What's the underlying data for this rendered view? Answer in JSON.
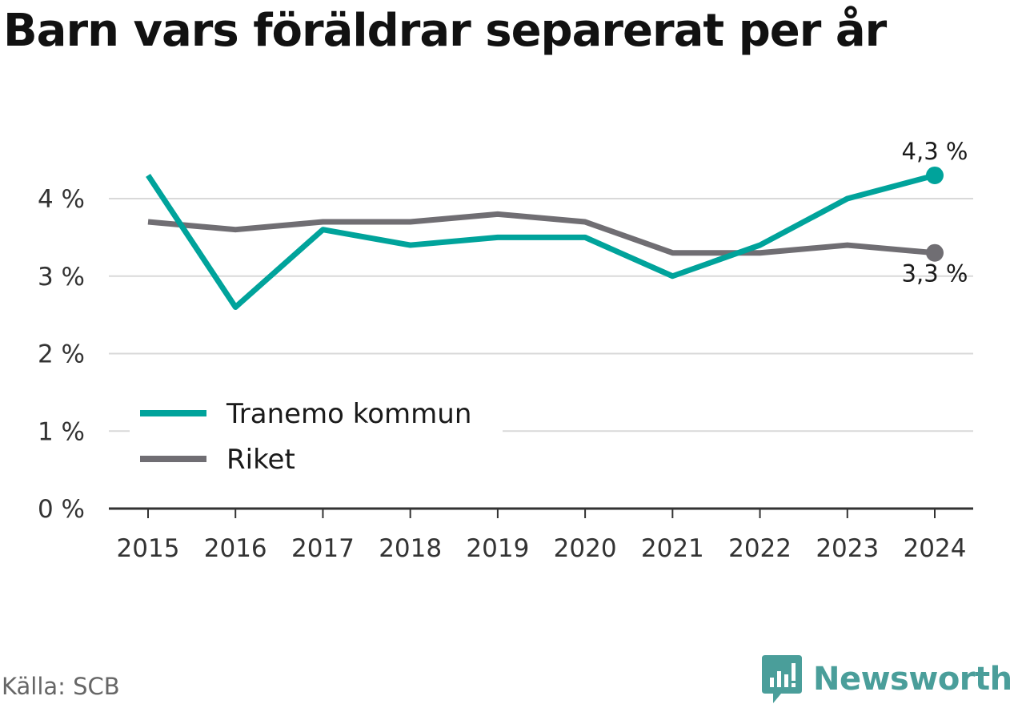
{
  "title": "Barn vars föräldrar separerat per år",
  "source": "Källa: SCB",
  "brand": {
    "name": "Newsworthy",
    "icon": "newsworthy-logo-icon"
  },
  "colors": {
    "tranemo": "#00a39b",
    "riket": "#706e73",
    "grid": "#d9d9d9",
    "axis": "#333333",
    "brand": "#4a9e9a"
  },
  "chart_data": {
    "type": "line",
    "categories": [
      "2015",
      "2016",
      "2017",
      "2018",
      "2019",
      "2020",
      "2021",
      "2022",
      "2023",
      "2024"
    ],
    "series": [
      {
        "name": "Tranemo kommun",
        "values": [
          4.3,
          2.6,
          3.6,
          3.4,
          3.5,
          3.5,
          3.0,
          3.4,
          4.0,
          4.3
        ],
        "end_label": "4,3 %"
      },
      {
        "name": "Riket",
        "values": [
          3.7,
          3.6,
          3.7,
          3.7,
          3.8,
          3.7,
          3.3,
          3.3,
          3.4,
          3.3
        ],
        "end_label": "3,3 %"
      }
    ],
    "yticks": [
      "0 %",
      "1 %",
      "2 %",
      "3 %",
      "4 %"
    ],
    "ylim": [
      0,
      4.5
    ],
    "grid": true,
    "legend_position": "bottom-left"
  }
}
